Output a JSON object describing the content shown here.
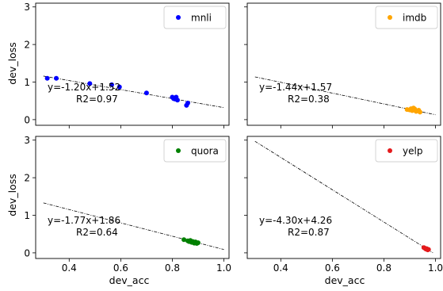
{
  "figure": {
    "xlabel": "dev_acc",
    "ylabel": "dev_loss"
  },
  "chart_data": [
    {
      "type": "scatter",
      "series": [
        {
          "name": "mnli",
          "color": "#0000ff",
          "x": [
            0.315,
            0.35,
            0.48,
            0.565,
            0.595,
            0.7,
            0.8,
            0.805,
            0.81,
            0.815,
            0.82,
            0.855,
            0.86
          ],
          "y": [
            1.1,
            1.1,
            0.96,
            0.93,
            0.87,
            0.71,
            0.6,
            0.56,
            0.55,
            0.6,
            0.52,
            0.38,
            0.44
          ]
        }
      ],
      "fit": {
        "slope": -1.2,
        "intercept": 1.52,
        "x_range": [
          0.3,
          1.0
        ]
      },
      "equation_text": "y=-1.20x+1.52",
      "r2_text": "R2=0.97",
      "xlim": [
        0.27,
        1.02
      ],
      "ylim": [
        -0.15,
        3.1
      ],
      "xticks": [
        0.4,
        0.6,
        0.8,
        1.0
      ],
      "yticks": [
        0,
        1,
        2,
        3
      ],
      "xtick_labels": [
        "",
        "",
        "",
        ""
      ],
      "ytick_labels": [
        "0",
        "1",
        "2",
        "3"
      ],
      "legend_position": "top-right",
      "grid": false
    },
    {
      "type": "scatter",
      "series": [
        {
          "name": "imdb",
          "color": "#ffa500",
          "x": [
            0.89,
            0.9,
            0.905,
            0.91,
            0.915,
            0.92,
            0.925,
            0.935,
            0.94
          ],
          "y": [
            0.27,
            0.26,
            0.29,
            0.24,
            0.31,
            0.28,
            0.22,
            0.25,
            0.2
          ]
        }
      ],
      "fit": {
        "slope": -1.44,
        "intercept": 1.57,
        "x_range": [
          0.3,
          1.0
        ]
      },
      "equation_text": "y=-1.44x+1.57",
      "r2_text": "R2=0.38",
      "xlim": [
        0.27,
        1.02
      ],
      "ylim": [
        -0.15,
        3.1
      ],
      "xticks": [
        0.4,
        0.6,
        0.8,
        1.0
      ],
      "yticks": [
        0,
        1,
        2,
        3
      ],
      "xtick_labels": [
        "",
        "",
        "",
        ""
      ],
      "ytick_labels": [
        "",
        "",
        "",
        ""
      ],
      "legend_position": "top-right",
      "grid": false
    },
    {
      "type": "scatter",
      "series": [
        {
          "name": "quora",
          "color": "#008000",
          "x": [
            0.845,
            0.86,
            0.865,
            0.87,
            0.875,
            0.88,
            0.885,
            0.89,
            0.895,
            0.9
          ],
          "y": [
            0.35,
            0.32,
            0.3,
            0.33,
            0.28,
            0.3,
            0.26,
            0.29,
            0.25,
            0.27
          ]
        }
      ],
      "fit": {
        "slope": -1.77,
        "intercept": 1.86,
        "x_range": [
          0.3,
          1.0
        ]
      },
      "equation_text": "y=-1.77x+1.86",
      "r2_text": "R2=0.64",
      "xlim": [
        0.27,
        1.02
      ],
      "ylim": [
        -0.15,
        3.1
      ],
      "xticks": [
        0.4,
        0.6,
        0.8,
        1.0
      ],
      "yticks": [
        0,
        1,
        2,
        3
      ],
      "xtick_labels": [
        "0.4",
        "0.6",
        "0.8",
        "1.0"
      ],
      "ytick_labels": [
        "0",
        "1",
        "2",
        "3"
      ],
      "legend_position": "top-right",
      "grid": false
    },
    {
      "type": "scatter",
      "series": [
        {
          "name": "yelp",
          "color": "#e41a1c",
          "x": [
            0.955,
            0.96,
            0.963,
            0.966,
            0.97,
            0.973
          ],
          "y": [
            0.14,
            0.12,
            0.1,
            0.11,
            0.08,
            0.09
          ]
        }
      ],
      "fit": {
        "slope": -4.3,
        "intercept": 4.26,
        "x_range": [
          0.3,
          0.99
        ]
      },
      "equation_text": "y=-4.30x+4.26",
      "r2_text": "R2=0.87",
      "xlim": [
        0.27,
        1.02
      ],
      "ylim": [
        -0.15,
        3.1
      ],
      "xticks": [
        0.4,
        0.6,
        0.8,
        1.0
      ],
      "yticks": [
        0,
        1,
        2,
        3
      ],
      "xtick_labels": [
        "0.4",
        "0.6",
        "0.8",
        "1.0"
      ],
      "ytick_labels": [
        "",
        "",
        "",
        ""
      ],
      "legend_position": "top-right",
      "grid": false
    }
  ]
}
